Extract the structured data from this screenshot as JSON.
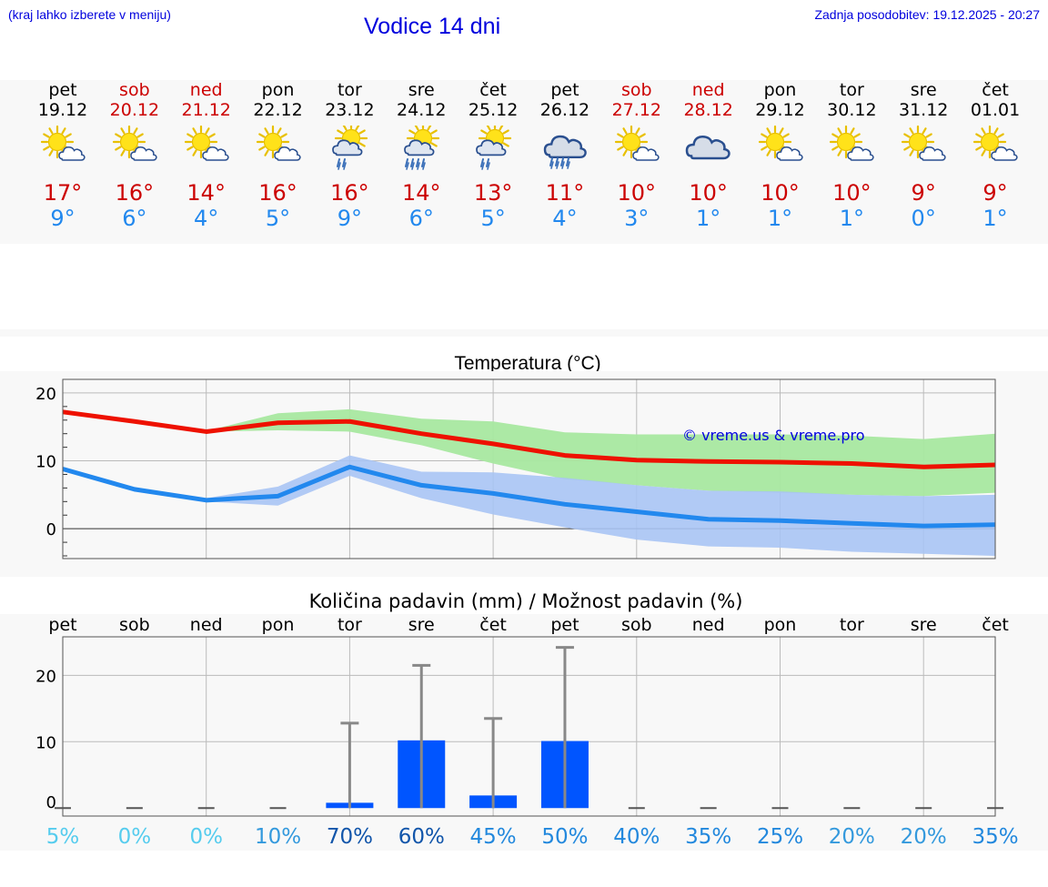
{
  "header": {
    "menu_hint": "(kraj lahko izberete v meniju)",
    "title": "Vodice 14 dni",
    "updated": "Zadnja posodobitev: 19.12.2025 - 20:27"
  },
  "colors": {
    "link": "#0000dd",
    "weekend": "#cc0000",
    "max_line": "#ee1100",
    "min_line": "#2288ee",
    "max_band": "#a8e8a0",
    "min_band": "#a8c4f4",
    "precip_bar": "#0055ff"
  },
  "days": [
    {
      "name": "pet",
      "date": "19.12",
      "weekend": false,
      "icon": "sun-cloud-icon",
      "tmax": "17°",
      "tmin": "9°"
    },
    {
      "name": "sob",
      "date": "20.12",
      "weekend": true,
      "icon": "sun-cloud-icon",
      "tmax": "16°",
      "tmin": "6°"
    },
    {
      "name": "ned",
      "date": "21.12",
      "weekend": true,
      "icon": "sun-cloud-icon",
      "tmax": "14°",
      "tmin": "4°"
    },
    {
      "name": "pon",
      "date": "22.12",
      "weekend": false,
      "icon": "sun-cloud-icon",
      "tmax": "16°",
      "tmin": "5°"
    },
    {
      "name": "tor",
      "date": "23.12",
      "weekend": false,
      "icon": "sun-cloud-rain-icon",
      "tmax": "16°",
      "tmin": "9°"
    },
    {
      "name": "sre",
      "date": "24.12",
      "weekend": false,
      "icon": "sun-cloud-heavy-rain-icon",
      "tmax": "14°",
      "tmin": "6°"
    },
    {
      "name": "čet",
      "date": "25.12",
      "weekend": false,
      "icon": "sun-cloud-rain-icon",
      "tmax": "13°",
      "tmin": "5°"
    },
    {
      "name": "pet",
      "date": "26.12",
      "weekend": false,
      "icon": "cloud-heavy-rain-icon",
      "tmax": "11°",
      "tmin": "4°"
    },
    {
      "name": "sob",
      "date": "27.12",
      "weekend": true,
      "icon": "sun-cloud-icon",
      "tmax": "10°",
      "tmin": "3°"
    },
    {
      "name": "ned",
      "date": "28.12",
      "weekend": true,
      "icon": "cloudy-icon",
      "tmax": "10°",
      "tmin": "1°"
    },
    {
      "name": "pon",
      "date": "29.12",
      "weekend": false,
      "icon": "sun-cloud-icon",
      "tmax": "10°",
      "tmin": "1°"
    },
    {
      "name": "tor",
      "date": "30.12",
      "weekend": false,
      "icon": "sun-cloud-icon",
      "tmax": "10°",
      "tmin": "1°"
    },
    {
      "name": "sre",
      "date": "31.12",
      "weekend": false,
      "icon": "sun-cloud-icon",
      "tmax": "9°",
      "tmin": "0°"
    },
    {
      "name": "čet",
      "date": "01.01",
      "weekend": false,
      "icon": "sun-cloud-icon",
      "tmax": "9°",
      "tmin": "1°"
    }
  ],
  "chart_data": [
    {
      "type": "line",
      "title": "Temperatura (°C)",
      "categories": [
        "pet",
        "sob",
        "ned",
        "pon",
        "tor",
        "sre",
        "čet",
        "pet",
        "sob",
        "ned",
        "pon",
        "tor",
        "sre",
        "čet"
      ],
      "ylim": [
        -4.4,
        22
      ],
      "yticks": [
        0,
        10,
        20
      ],
      "watermark": "© vreme.us & vreme.pro",
      "series": [
        {
          "name": "max",
          "values": [
            17.2,
            15.8,
            14.3,
            15.6,
            15.8,
            14.0,
            12.5,
            10.8,
            10.1,
            9.9,
            9.8,
            9.6,
            9.1,
            9.4
          ],
          "band_low": [
            17.2,
            15.8,
            14.3,
            14.5,
            14.3,
            12.3,
            9.6,
            7.3,
            6.4,
            5.6,
            5.3,
            5.0,
            4.8,
            5.3
          ],
          "band_high": [
            17.2,
            15.9,
            14.4,
            17.0,
            17.6,
            16.2,
            15.8,
            14.2,
            13.9,
            13.9,
            13.9,
            13.7,
            13.2,
            14.0
          ]
        },
        {
          "name": "min",
          "values": [
            8.8,
            5.8,
            4.2,
            4.8,
            9.1,
            6.4,
            5.2,
            3.6,
            2.5,
            1.4,
            1.2,
            0.8,
            0.4,
            0.6
          ],
          "band_low": [
            8.8,
            5.6,
            4.0,
            3.4,
            7.8,
            4.5,
            2.1,
            0.2,
            -1.6,
            -2.6,
            -2.8,
            -3.4,
            -3.7,
            -4.0
          ],
          "band_high": [
            8.8,
            6.0,
            4.5,
            6.2,
            10.8,
            8.4,
            8.3,
            7.5,
            6.4,
            5.6,
            5.5,
            5.0,
            4.8,
            5.0
          ]
        }
      ]
    },
    {
      "type": "bar",
      "title": "Količina padavin (mm) / Možnost padavin (%)",
      "categories": [
        "pet",
        "sob",
        "ned",
        "pon",
        "tor",
        "sre",
        "čet",
        "pet",
        "sob",
        "ned",
        "pon",
        "tor",
        "sre",
        "čet"
      ],
      "ylim": [
        -1.2,
        25.8
      ],
      "yticks": [
        0,
        10,
        20
      ],
      "values": [
        0,
        0,
        0,
        0,
        0.8,
        10.2,
        1.9,
        10.1,
        0,
        0,
        0,
        0,
        0,
        0
      ],
      "error_max": [
        0,
        0,
        0,
        0,
        12.8,
        21.5,
        13.5,
        24.2,
        0,
        0,
        0,
        0,
        0,
        0
      ],
      "probability": [
        "5%",
        "0%",
        "0%",
        "10%",
        "70%",
        "60%",
        "45%",
        "50%",
        "40%",
        "35%",
        "25%",
        "20%",
        "20%",
        "35%"
      ],
      "probability_colors": [
        "#55ccee",
        "#55ccee",
        "#55ccee",
        "#3399dd",
        "#1155aa",
        "#1155aa",
        "#2288dd",
        "#2288dd",
        "#2288dd",
        "#2288dd",
        "#2288dd",
        "#3399dd",
        "#3399dd",
        "#2288dd"
      ]
    }
  ]
}
